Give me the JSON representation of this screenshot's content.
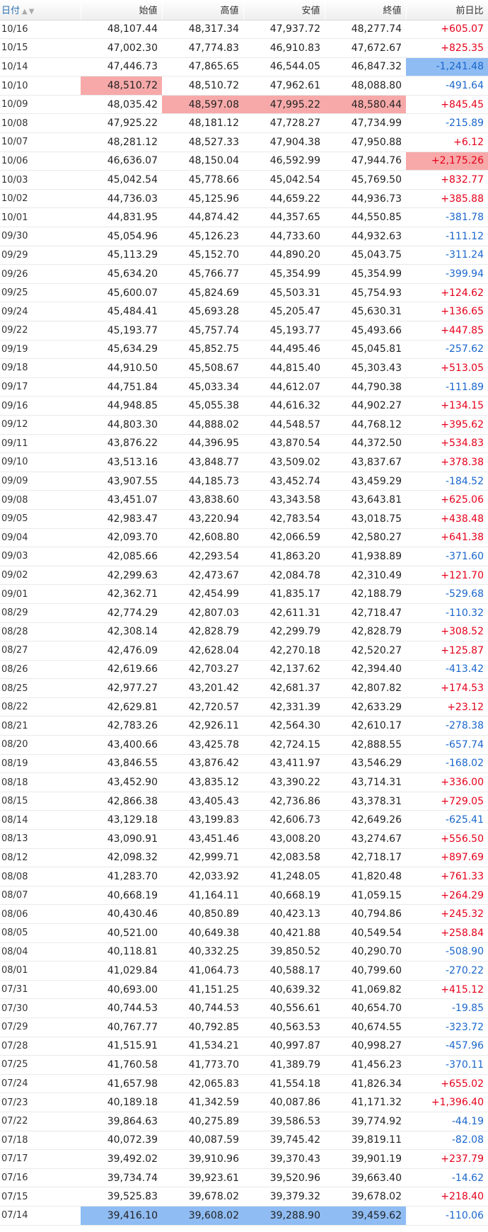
{
  "headers": {
    "date": "日付",
    "open": "始値",
    "high": "高値",
    "low": "安値",
    "close": "終値",
    "change": "前日比"
  },
  "icons": {
    "sort": "sort-up-down-icon"
  },
  "colors": {
    "up": "#e6001a",
    "down": "#1a66cc",
    "highlight_high": "#f7a9a9",
    "highlight_low": "#8fbcf3"
  },
  "rows": [
    {
      "date": "10/16",
      "open": "48,107.44",
      "high": "48,317.34",
      "low": "47,937.72",
      "close": "48,277.74",
      "change": "+605.07",
      "hl": {}
    },
    {
      "date": "10/15",
      "open": "47,002.30",
      "high": "47,774.83",
      "low": "46,910.83",
      "close": "47,672.67",
      "change": "+825.35",
      "hl": {}
    },
    {
      "date": "10/14",
      "open": "47,446.73",
      "high": "47,865.65",
      "low": "46,544.05",
      "close": "46,847.32",
      "change": "-1,241.48",
      "hl": {
        "change": "low"
      }
    },
    {
      "date": "10/10",
      "open": "48,510.72",
      "high": "48,510.72",
      "low": "47,962.61",
      "close": "48,088.80",
      "change": "-491.64",
      "hl": {
        "open": "high"
      }
    },
    {
      "date": "10/09",
      "open": "48,035.42",
      "high": "48,597.08",
      "low": "47,995.22",
      "close": "48,580.44",
      "change": "+845.45",
      "hl": {
        "high": "high",
        "low": "high",
        "close": "high"
      }
    },
    {
      "date": "10/08",
      "open": "47,925.22",
      "high": "48,181.12",
      "low": "47,728.27",
      "close": "47,734.99",
      "change": "-215.89",
      "hl": {}
    },
    {
      "date": "10/07",
      "open": "48,281.12",
      "high": "48,527.33",
      "low": "47,904.38",
      "close": "47,950.88",
      "change": "+6.12",
      "hl": {}
    },
    {
      "date": "10/06",
      "open": "46,636.07",
      "high": "48,150.04",
      "low": "46,592.99",
      "close": "47,944.76",
      "change": "+2,175.26",
      "hl": {
        "change": "high"
      }
    },
    {
      "date": "10/03",
      "open": "45,042.54",
      "high": "45,778.66",
      "low": "45,042.54",
      "close": "45,769.50",
      "change": "+832.77",
      "hl": {}
    },
    {
      "date": "10/02",
      "open": "44,736.03",
      "high": "45,125.96",
      "low": "44,659.22",
      "close": "44,936.73",
      "change": "+385.88",
      "hl": {}
    },
    {
      "date": "10/01",
      "open": "44,831.95",
      "high": "44,874.42",
      "low": "44,357.65",
      "close": "44,550.85",
      "change": "-381.78",
      "hl": {}
    },
    {
      "date": "09/30",
      "open": "45,054.96",
      "high": "45,126.23",
      "low": "44,733.60",
      "close": "44,932.63",
      "change": "-111.12",
      "hl": {}
    },
    {
      "date": "09/29",
      "open": "45,113.29",
      "high": "45,152.70",
      "low": "44,890.20",
      "close": "45,043.75",
      "change": "-311.24",
      "hl": {}
    },
    {
      "date": "09/26",
      "open": "45,634.20",
      "high": "45,766.77",
      "low": "45,354.99",
      "close": "45,354.99",
      "change": "-399.94",
      "hl": {}
    },
    {
      "date": "09/25",
      "open": "45,600.07",
      "high": "45,824.69",
      "low": "45,503.31",
      "close": "45,754.93",
      "change": "+124.62",
      "hl": {}
    },
    {
      "date": "09/24",
      "open": "45,484.41",
      "high": "45,693.28",
      "low": "45,205.47",
      "close": "45,630.31",
      "change": "+136.65",
      "hl": {}
    },
    {
      "date": "09/22",
      "open": "45,193.77",
      "high": "45,757.74",
      "low": "45,193.77",
      "close": "45,493.66",
      "change": "+447.85",
      "hl": {}
    },
    {
      "date": "09/19",
      "open": "45,634.29",
      "high": "45,852.75",
      "low": "44,495.46",
      "close": "45,045.81",
      "change": "-257.62",
      "hl": {}
    },
    {
      "date": "09/18",
      "open": "44,910.50",
      "high": "45,508.67",
      "low": "44,815.40",
      "close": "45,303.43",
      "change": "+513.05",
      "hl": {}
    },
    {
      "date": "09/17",
      "open": "44,751.84",
      "high": "45,033.34",
      "low": "44,612.07",
      "close": "44,790.38",
      "change": "-111.89",
      "hl": {}
    },
    {
      "date": "09/16",
      "open": "44,948.85",
      "high": "45,055.38",
      "low": "44,616.32",
      "close": "44,902.27",
      "change": "+134.15",
      "hl": {}
    },
    {
      "date": "09/12",
      "open": "44,803.30",
      "high": "44,888.02",
      "low": "44,548.57",
      "close": "44,768.12",
      "change": "+395.62",
      "hl": {}
    },
    {
      "date": "09/11",
      "open": "43,876.22",
      "high": "44,396.95",
      "low": "43,870.54",
      "close": "44,372.50",
      "change": "+534.83",
      "hl": {}
    },
    {
      "date": "09/10",
      "open": "43,513.16",
      "high": "43,848.77",
      "low": "43,509.02",
      "close": "43,837.67",
      "change": "+378.38",
      "hl": {}
    },
    {
      "date": "09/09",
      "open": "43,907.55",
      "high": "44,185.73",
      "low": "43,452.74",
      "close": "43,459.29",
      "change": "-184.52",
      "hl": {}
    },
    {
      "date": "09/08",
      "open": "43,451.07",
      "high": "43,838.60",
      "low": "43,343.58",
      "close": "43,643.81",
      "change": "+625.06",
      "hl": {}
    },
    {
      "date": "09/05",
      "open": "42,983.47",
      "high": "43,220.94",
      "low": "42,783.54",
      "close": "43,018.75",
      "change": "+438.48",
      "hl": {}
    },
    {
      "date": "09/04",
      "open": "42,093.70",
      "high": "42,608.80",
      "low": "42,066.59",
      "close": "42,580.27",
      "change": "+641.38",
      "hl": {}
    },
    {
      "date": "09/03",
      "open": "42,085.66",
      "high": "42,293.54",
      "low": "41,863.20",
      "close": "41,938.89",
      "change": "-371.60",
      "hl": {}
    },
    {
      "date": "09/02",
      "open": "42,299.63",
      "high": "42,473.67",
      "low": "42,084.78",
      "close": "42,310.49",
      "change": "+121.70",
      "hl": {}
    },
    {
      "date": "09/01",
      "open": "42,362.71",
      "high": "42,454.99",
      "low": "41,835.17",
      "close": "42,188.79",
      "change": "-529.68",
      "hl": {}
    },
    {
      "date": "08/29",
      "open": "42,774.29",
      "high": "42,807.03",
      "low": "42,611.31",
      "close": "42,718.47",
      "change": "-110.32",
      "hl": {}
    },
    {
      "date": "08/28",
      "open": "42,308.14",
      "high": "42,828.79",
      "low": "42,299.79",
      "close": "42,828.79",
      "change": "+308.52",
      "hl": {}
    },
    {
      "date": "08/27",
      "open": "42,476.09",
      "high": "42,628.04",
      "low": "42,270.18",
      "close": "42,520.27",
      "change": "+125.87",
      "hl": {}
    },
    {
      "date": "08/26",
      "open": "42,619.66",
      "high": "42,703.27",
      "low": "42,137.62",
      "close": "42,394.40",
      "change": "-413.42",
      "hl": {}
    },
    {
      "date": "08/25",
      "open": "42,977.27",
      "high": "43,201.42",
      "low": "42,681.37",
      "close": "42,807.82",
      "change": "+174.53",
      "hl": {}
    },
    {
      "date": "08/22",
      "open": "42,629.81",
      "high": "42,720.57",
      "low": "42,331.39",
      "close": "42,633.29",
      "change": "+23.12",
      "hl": {}
    },
    {
      "date": "08/21",
      "open": "42,783.26",
      "high": "42,926.11",
      "low": "42,564.30",
      "close": "42,610.17",
      "change": "-278.38",
      "hl": {}
    },
    {
      "date": "08/20",
      "open": "43,400.66",
      "high": "43,425.78",
      "low": "42,724.15",
      "close": "42,888.55",
      "change": "-657.74",
      "hl": {}
    },
    {
      "date": "08/19",
      "open": "43,846.55",
      "high": "43,876.42",
      "low": "43,411.97",
      "close": "43,546.29",
      "change": "-168.02",
      "hl": {}
    },
    {
      "date": "08/18",
      "open": "43,452.90",
      "high": "43,835.12",
      "low": "43,390.22",
      "close": "43,714.31",
      "change": "+336.00",
      "hl": {}
    },
    {
      "date": "08/15",
      "open": "42,866.38",
      "high": "43,405.43",
      "low": "42,736.86",
      "close": "43,378.31",
      "change": "+729.05",
      "hl": {}
    },
    {
      "date": "08/14",
      "open": "43,129.18",
      "high": "43,199.83",
      "low": "42,606.73",
      "close": "42,649.26",
      "change": "-625.41",
      "hl": {}
    },
    {
      "date": "08/13",
      "open": "43,090.91",
      "high": "43,451.46",
      "low": "43,008.20",
      "close": "43,274.67",
      "change": "+556.50",
      "hl": {}
    },
    {
      "date": "08/12",
      "open": "42,098.32",
      "high": "42,999.71",
      "low": "42,083.58",
      "close": "42,718.17",
      "change": "+897.69",
      "hl": {}
    },
    {
      "date": "08/08",
      "open": "41,283.70",
      "high": "42,033.92",
      "low": "41,248.05",
      "close": "41,820.48",
      "change": "+761.33",
      "hl": {}
    },
    {
      "date": "08/07",
      "open": "40,668.19",
      "high": "41,164.11",
      "low": "40,668.19",
      "close": "41,059.15",
      "change": "+264.29",
      "hl": {}
    },
    {
      "date": "08/06",
      "open": "40,430.46",
      "high": "40,850.89",
      "low": "40,423.13",
      "close": "40,794.86",
      "change": "+245.32",
      "hl": {}
    },
    {
      "date": "08/05",
      "open": "40,521.00",
      "high": "40,649.38",
      "low": "40,421.88",
      "close": "40,549.54",
      "change": "+258.84",
      "hl": {}
    },
    {
      "date": "08/04",
      "open": "40,118.81",
      "high": "40,332.25",
      "low": "39,850.52",
      "close": "40,290.70",
      "change": "-508.90",
      "hl": {}
    },
    {
      "date": "08/01",
      "open": "41,029.84",
      "high": "41,064.73",
      "low": "40,588.17",
      "close": "40,799.60",
      "change": "-270.22",
      "hl": {}
    },
    {
      "date": "07/31",
      "open": "40,693.00",
      "high": "41,151.25",
      "low": "40,639.32",
      "close": "41,069.82",
      "change": "+415.12",
      "hl": {}
    },
    {
      "date": "07/30",
      "open": "40,744.53",
      "high": "40,744.53",
      "low": "40,556.61",
      "close": "40,654.70",
      "change": "-19.85",
      "hl": {}
    },
    {
      "date": "07/29",
      "open": "40,767.77",
      "high": "40,792.85",
      "low": "40,563.53",
      "close": "40,674.55",
      "change": "-323.72",
      "hl": {}
    },
    {
      "date": "07/28",
      "open": "41,515.91",
      "high": "41,534.21",
      "low": "40,997.87",
      "close": "40,998.27",
      "change": "-457.96",
      "hl": {}
    },
    {
      "date": "07/25",
      "open": "41,760.58",
      "high": "41,773.70",
      "low": "41,389.79",
      "close": "41,456.23",
      "change": "-370.11",
      "hl": {}
    },
    {
      "date": "07/24",
      "open": "41,657.98",
      "high": "42,065.83",
      "low": "41,554.18",
      "close": "41,826.34",
      "change": "+655.02",
      "hl": {}
    },
    {
      "date": "07/23",
      "open": "40,189.18",
      "high": "41,342.59",
      "low": "40,087.86",
      "close": "41,171.32",
      "change": "+1,396.40",
      "hl": {}
    },
    {
      "date": "07/22",
      "open": "39,864.63",
      "high": "40,275.89",
      "low": "39,586.53",
      "close": "39,774.92",
      "change": "-44.19",
      "hl": {}
    },
    {
      "date": "07/18",
      "open": "40,072.39",
      "high": "40,087.59",
      "low": "39,745.42",
      "close": "39,819.11",
      "change": "-82.08",
      "hl": {}
    },
    {
      "date": "07/17",
      "open": "39,492.02",
      "high": "39,910.96",
      "low": "39,370.43",
      "close": "39,901.19",
      "change": "+237.79",
      "hl": {}
    },
    {
      "date": "07/16",
      "open": "39,734.74",
      "high": "39,923.61",
      "low": "39,520.96",
      "close": "39,663.40",
      "change": "-14.62",
      "hl": {}
    },
    {
      "date": "07/15",
      "open": "39,525.83",
      "high": "39,678.02",
      "low": "39,379.32",
      "close": "39,678.02",
      "change": "+218.40",
      "hl": {}
    },
    {
      "date": "07/14",
      "open": "39,416.10",
      "high": "39,608.02",
      "low": "39,288.90",
      "close": "39,459.62",
      "change": "-110.06",
      "hl": {
        "open": "low",
        "high": "low",
        "low": "low",
        "close": "low"
      }
    }
  ]
}
